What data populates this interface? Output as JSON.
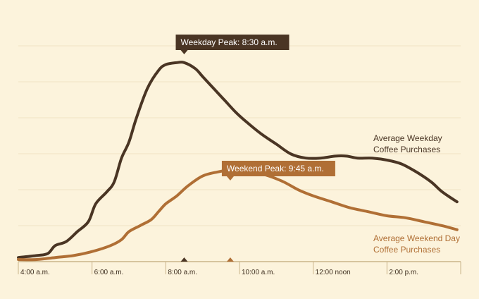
{
  "colors": {
    "background": "#fcf3dc",
    "grid": "#efe3c4",
    "axis": "#c9b48a",
    "weekday": "#4a3524",
    "weekend": "#b06f35",
    "tick_text": "#3e2e1f"
  },
  "chart_data": {
    "type": "line",
    "xlim": [
      4,
      16
    ],
    "ylim": [
      0,
      100
    ],
    "grid": true,
    "x_ticks": [
      {
        "value": 4,
        "label": "4:00 a.m."
      },
      {
        "value": 6,
        "label": "6:00 a.m."
      },
      {
        "value": 8,
        "label": "8:00 a.m."
      },
      {
        "value": 10,
        "label": "10:00 a.m."
      },
      {
        "value": 12,
        "label": "12:00 noon"
      },
      {
        "value": 14,
        "label": "2:00 p.m."
      }
    ],
    "series": [
      {
        "name": "Average Weekday Coffee Purchases",
        "label_lines": [
          "Average Weekday",
          "Coffee Purchases"
        ],
        "color": "#4a3524",
        "x": [
          4.0,
          4.5,
          4.8,
          5.0,
          5.3,
          5.6,
          5.9,
          6.1,
          6.4,
          6.6,
          6.8,
          7.0,
          7.2,
          7.5,
          7.8,
          8.0,
          8.3,
          8.5,
          8.8,
          9.0,
          9.3,
          9.6,
          9.9,
          10.2,
          10.6,
          11.0,
          11.4,
          11.8,
          12.2,
          12.6,
          12.9,
          13.2,
          13.6,
          14.0,
          14.4,
          14.8,
          15.2,
          15.5,
          15.9
        ],
        "y": [
          1,
          2,
          3,
          7,
          9,
          14,
          19,
          28,
          34,
          39,
          51,
          59,
          71,
          86,
          95,
          98,
          99,
          99,
          96,
          92,
          86,
          80,
          74,
          69,
          63,
          58,
          53,
          51,
          51,
          52,
          52,
          51,
          51,
          50,
          48,
          44,
          39,
          34,
          29
        ],
        "peak": {
          "x": 8.5,
          "label": "Weekday Peak: 8:30 a.m."
        }
      },
      {
        "name": "Average Weekend Day Coffee Purchases",
        "label_lines": [
          "Average Weekend Day",
          "Coffee Purchases"
        ],
        "color": "#b06f35",
        "x": [
          4.0,
          4.5,
          5.0,
          5.5,
          6.0,
          6.5,
          6.8,
          7.0,
          7.3,
          7.6,
          7.8,
          8.0,
          8.3,
          8.6,
          9.0,
          9.4,
          9.75,
          10.0,
          10.4,
          10.8,
          11.2,
          11.6,
          12.0,
          12.5,
          13.0,
          13.5,
          14.0,
          14.5,
          15.0,
          15.5,
          15.9
        ],
        "y": [
          0,
          0,
          1,
          2,
          4,
          7,
          10,
          14,
          17,
          20,
          24,
          28,
          32,
          37,
          42,
          44,
          45,
          45,
          44,
          42,
          39,
          35,
          32,
          29,
          26,
          24,
          22,
          21,
          19,
          17,
          15
        ],
        "peak": {
          "x": 9.75,
          "label": "Weekend Peak: 9:45 a.m."
        }
      }
    ]
  }
}
